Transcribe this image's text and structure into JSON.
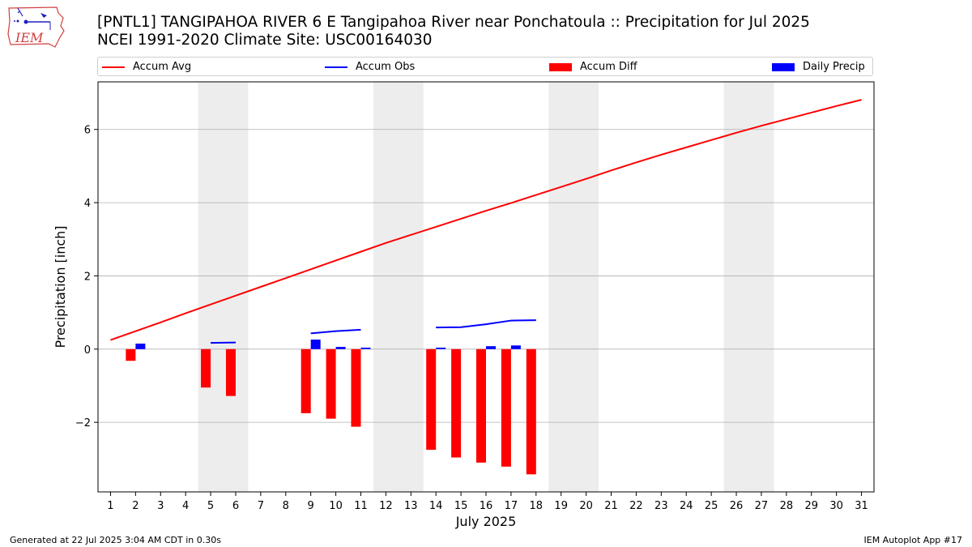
{
  "title_lines": [
    "[PNTL1] TANGIPAHOA RIVER 6 E Tangipahoa River near Ponchatoula :: Precipitation for Jul 2025",
    "NCEI 1991-2020 Climate Site: USC00164030"
  ],
  "logo": {
    "text": "IEM",
    "icon": "iowa-state-weather-logo-icon"
  },
  "footer": {
    "generated": "Generated at 22 Jul 2025 3:04 AM CDT in 0.30s",
    "app": "IEM Autoplot App #17"
  },
  "colors": {
    "avg": "#ff0000",
    "obs": "#0000ff",
    "diff": "#ff0000",
    "daily": "#0000ff",
    "weekend": "#ededed",
    "grid": "#b0b0b0"
  },
  "chart_data": {
    "type": "bar",
    "xlabel": "July 2025",
    "ylabel": "Precipitation [inch]",
    "xlim": [
      0.5,
      31.5
    ],
    "ylim": [
      -3.9,
      7.3
    ],
    "yticks": [
      -2,
      0,
      2,
      4,
      6
    ],
    "xticks": [
      1,
      2,
      3,
      4,
      5,
      6,
      7,
      8,
      9,
      10,
      11,
      12,
      13,
      14,
      15,
      16,
      17,
      18,
      19,
      20,
      21,
      22,
      23,
      24,
      25,
      26,
      27,
      28,
      29,
      30,
      31
    ],
    "grid": "horizontal",
    "legend": [
      "Accum Avg",
      "Accum Obs",
      "Accum Diff",
      "Daily Precip"
    ],
    "weekend_bands": [
      [
        4.5,
        6.5
      ],
      [
        11.5,
        13.5
      ],
      [
        18.5,
        20.5
      ],
      [
        25.5,
        27.5
      ]
    ],
    "series": [
      {
        "name": "Accum Avg",
        "kind": "line",
        "x": [
          1,
          2,
          3,
          4,
          5,
          6,
          7,
          8,
          9,
          10,
          11,
          12,
          13,
          14,
          15,
          16,
          17,
          18,
          19,
          20,
          21,
          22,
          23,
          24,
          25,
          26,
          27,
          28,
          29,
          30,
          31
        ],
        "values": [
          0.25,
          0.49,
          0.73,
          0.98,
          1.22,
          1.46,
          1.7,
          1.94,
          2.18,
          2.42,
          2.66,
          2.9,
          3.12,
          3.34,
          3.56,
          3.78,
          3.99,
          4.21,
          4.43,
          4.65,
          4.88,
          5.1,
          5.31,
          5.51,
          5.71,
          5.91,
          6.1,
          6.28,
          6.46,
          6.64,
          6.81
        ]
      },
      {
        "name": "Accum Obs",
        "kind": "line",
        "segments": [
          {
            "x": [
              5,
              6
            ],
            "values": [
              0.17,
              0.18
            ]
          },
          {
            "x": [
              9,
              10,
              11
            ],
            "values": [
              0.43,
              0.49,
              0.53
            ]
          },
          {
            "x": [
              14,
              15,
              16,
              17,
              18
            ],
            "values": [
              0.59,
              0.6,
              0.68,
              0.78,
              0.79
            ]
          }
        ]
      },
      {
        "name": "Accum Diff",
        "kind": "bar",
        "x": [
          2,
          5,
          6,
          9,
          10,
          11,
          14,
          15,
          16,
          17,
          18
        ],
        "values": [
          -0.32,
          -1.05,
          -1.28,
          -1.75,
          -1.9,
          -2.12,
          -2.75,
          -2.96,
          -3.1,
          -3.21,
          -3.42
        ]
      },
      {
        "name": "Daily Precip",
        "kind": "bar",
        "x": [
          2,
          9,
          10,
          11,
          14,
          16,
          17
        ],
        "values": [
          0.15,
          0.26,
          0.06,
          0.04,
          0.04,
          0.08,
          0.1
        ]
      }
    ]
  }
}
